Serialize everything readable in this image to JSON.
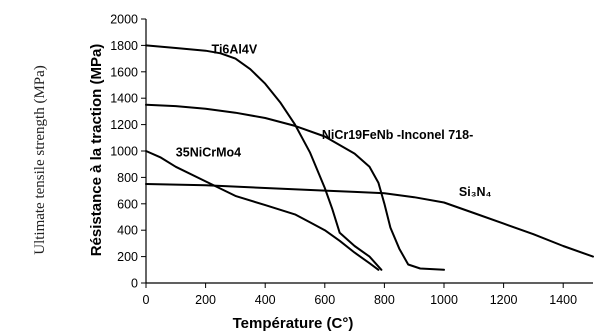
{
  "outer_label": "Ultimate tensile strength (MPa)",
  "chart_data": {
    "type": "line",
    "title": "",
    "xlabel": "Température (C°)",
    "ylabel": "Résistance à la traction (MPa)",
    "xlim": [
      0,
      1500
    ],
    "ylim": [
      0,
      2000
    ],
    "x_ticks": [
      0,
      200,
      400,
      600,
      800,
      1000,
      1200,
      1400
    ],
    "y_ticks": [
      0,
      200,
      400,
      600,
      800,
      1000,
      1200,
      1400,
      1600,
      1800,
      2000
    ],
    "grid": false,
    "series": [
      {
        "name": "Ti6Al4V",
        "label_at": [
          220,
          1740
        ],
        "x": [
          0,
          100,
          200,
          250,
          300,
          350,
          400,
          450,
          500,
          550,
          600,
          625,
          650,
          700,
          750,
          790
        ],
        "y": [
          1800,
          1780,
          1760,
          1740,
          1700,
          1620,
          1510,
          1370,
          1200,
          990,
          720,
          560,
          380,
          280,
          200,
          100
        ]
      },
      {
        "name": "NiCr19FeNb -Inconel 718-",
        "label_at": [
          590,
          1090
        ],
        "x": [
          0,
          100,
          200,
          300,
          400,
          500,
          600,
          700,
          750,
          780,
          800,
          820,
          850,
          880,
          920,
          1000
        ],
        "y": [
          1350,
          1340,
          1320,
          1290,
          1250,
          1190,
          1110,
          980,
          880,
          760,
          600,
          420,
          260,
          140,
          110,
          100
        ]
      },
      {
        "name": "35NiCrMo4",
        "label_at": [
          100,
          960
        ],
        "x": [
          0,
          50,
          100,
          200,
          300,
          400,
          500,
          550,
          600,
          650,
          700,
          750,
          780
        ],
        "y": [
          1000,
          950,
          880,
          770,
          660,
          590,
          520,
          460,
          400,
          320,
          230,
          150,
          100
        ]
      },
      {
        "name": "Si₃N₄",
        "label_at": [
          1050,
          660
        ],
        "x": [
          0,
          200,
          400,
          600,
          700,
          800,
          900,
          1000,
          1100,
          1200,
          1300,
          1400,
          1500
        ],
        "y": [
          750,
          740,
          720,
          700,
          690,
          680,
          650,
          610,
          530,
          450,
          370,
          280,
          200
        ]
      }
    ]
  }
}
